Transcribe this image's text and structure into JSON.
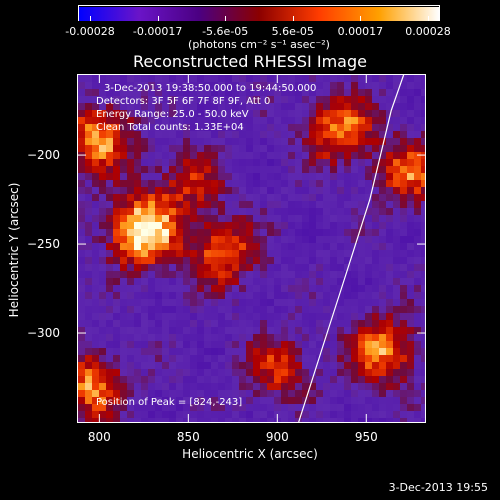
{
  "colorbar": {
    "tick_labels": [
      "-0.00028",
      "-0.00017",
      "-5.6e-05",
      "5.6e-05",
      "0.00017",
      "0.00028"
    ],
    "units": "(photons cm⁻² s⁻¹ asec⁻²)",
    "colors": [
      "#0000ff",
      "#6a14c8",
      "#4b0082",
      "#8b0000",
      "#ff3c00",
      "#ffa000",
      "#ffffff"
    ]
  },
  "plot": {
    "title": "Reconstructed RHESSI Image",
    "info_lines": [
      "3-Dec-2013 19:38:50.000 to 19:44:50.000",
      "Detectors: 3F 5F 6F 7F 8F 9F, Att 0",
      "Energy Range: 25.0 - 50.0 keV",
      "Clean    Total counts: 1.33E+04"
    ],
    "peak_text": "Position of Peak = [824,-243]"
  },
  "chart_data": {
    "type": "heatmap",
    "title": "Reconstructed RHESSI Image",
    "xlabel": "Heliocentric X (arcsec)",
    "ylabel": "Heliocentric Y (arcsec)",
    "xlim": [
      788,
      983
    ],
    "ylim": [
      -350,
      -155
    ],
    "x_ticks": [
      800,
      850,
      900,
      950
    ],
    "y_ticks": [
      -200,
      -250,
      -300
    ],
    "colorbar_range": [
      -0.00028,
      0.00028
    ],
    "peak_position": [
      824,
      -243
    ],
    "limb_curve": {
      "x": [
        912,
        920,
        928,
        936,
        944,
        952,
        958,
        964,
        971
      ],
      "y": [
        -350,
        -325,
        -300,
        -275,
        -250,
        -225,
        -200,
        -175,
        -155
      ]
    },
    "bright_regions": [
      {
        "x": 824,
        "y": -243,
        "level": 1.0
      },
      {
        "x": 800,
        "y": -190,
        "level": 0.75
      },
      {
        "x": 870,
        "y": -255,
        "level": 0.65
      },
      {
        "x": 935,
        "y": -185,
        "level": 0.7
      },
      {
        "x": 960,
        "y": -310,
        "level": 0.7
      },
      {
        "x": 975,
        "y": -210,
        "level": 0.6
      },
      {
        "x": 795,
        "y": -330,
        "level": 0.7
      },
      {
        "x": 900,
        "y": -320,
        "level": 0.5
      },
      {
        "x": 850,
        "y": -215,
        "level": 0.45
      }
    ]
  },
  "footer": {
    "date": "3-Dec-2013 19:55"
  }
}
